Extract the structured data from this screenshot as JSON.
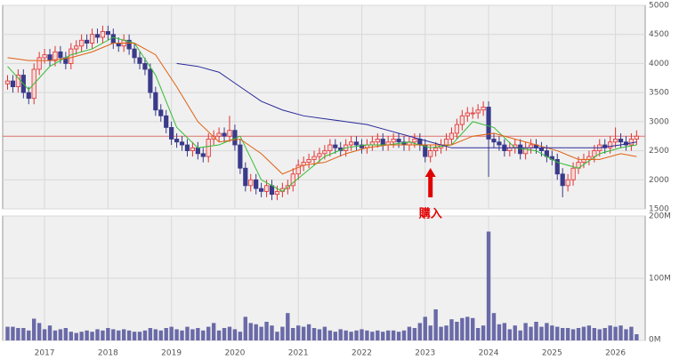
{
  "chart_data": {
    "type": "candlestick",
    "x": [
      "2016-06",
      "2016-07",
      "2016-08",
      "2016-09",
      "2016-10",
      "2016-11",
      "2016-12",
      "2017-01",
      "2017-02",
      "2017-03",
      "2017-04",
      "2017-05",
      "2017-06",
      "2017-07",
      "2017-08",
      "2017-09",
      "2017-10",
      "2017-11",
      "2017-12",
      "2018-01",
      "2018-02",
      "2018-03",
      "2018-04",
      "2018-05",
      "2018-06",
      "2018-07",
      "2018-08",
      "2018-09",
      "2018-10",
      "2018-11",
      "2018-12",
      "2019-01",
      "2019-02",
      "2019-03",
      "2019-04",
      "2019-05",
      "2019-06",
      "2019-07",
      "2019-08",
      "2019-09",
      "2019-10",
      "2019-11",
      "2019-12",
      "2020-01",
      "2020-02",
      "2020-03",
      "2020-04",
      "2020-05",
      "2020-06",
      "2020-07",
      "2020-08",
      "2020-09",
      "2020-10",
      "2020-11",
      "2020-12",
      "2021-01",
      "2021-02",
      "2021-03",
      "2021-04",
      "2021-05",
      "2021-06",
      "2021-07",
      "2021-08",
      "2021-09",
      "2021-10",
      "2021-11",
      "2021-12",
      "2022-01",
      "2022-02",
      "2022-03",
      "2022-04",
      "2022-05",
      "2022-06",
      "2022-07",
      "2022-08",
      "2022-09",
      "2022-10",
      "2022-11",
      "2022-12",
      "2023-01",
      "2023-02",
      "2023-03",
      "2023-04",
      "2023-05",
      "2023-06",
      "2023-07",
      "2023-08",
      "2023-09",
      "2023-10",
      "2023-11",
      "2023-12",
      "2024-01",
      "2024-02",
      "2024-03",
      "2024-04",
      "2024-05",
      "2024-06",
      "2024-07",
      "2024-08",
      "2024-09",
      "2024-10",
      "2024-11",
      "2024-12",
      "2025-01",
      "2025-02",
      "2025-03",
      "2025-04",
      "2025-05",
      "2025-06",
      "2025-07",
      "2025-08",
      "2025-09",
      "2025-10",
      "2025-11",
      "2025-12",
      "2026-01",
      "2026-02",
      "2026-03",
      "2026-04",
      "2026-05"
    ],
    "open": [
      3650,
      3700,
      3600,
      3800,
      3500,
      3400,
      3900,
      4100,
      4150,
      4050,
      4200,
      4100,
      4000,
      4250,
      4300,
      4400,
      4350,
      4500,
      4450,
      4550,
      4500,
      4350,
      4300,
      4400,
      4250,
      4100,
      4000,
      3900,
      3500,
      3200,
      3100,
      2900,
      2700,
      2650,
      2600,
      2500,
      2550,
      2450,
      2400,
      2700,
      2750,
      2800,
      2750,
      2850,
      2600,
      2200,
      1900,
      2000,
      1850,
      1800,
      1900,
      1750,
      1800,
      1850,
      1900,
      2100,
      2250,
      2300,
      2350,
      2400,
      2450,
      2500,
      2600,
      2550,
      2500,
      2600,
      2650,
      2600,
      2550,
      2600,
      2650,
      2700,
      2600,
      2650,
      2700,
      2650,
      2600,
      2650,
      2700,
      2600,
      2400,
      2500,
      2550,
      2600,
      2700,
      2800,
      2950,
      3100,
      3150,
      3150,
      3200,
      3250,
      2700,
      2650,
      2600,
      2500,
      2550,
      2600,
      2450,
      2550,
      2600,
      2550,
      2500,
      2400,
      2350,
      2100,
      1900,
      2000,
      2200,
      2300,
      2350,
      2400,
      2500,
      2600,
      2550,
      2650,
      2700,
      2650,
      2600,
      2700
    ],
    "high": [
      3800,
      3800,
      3900,
      3900,
      3600,
      4000,
      4200,
      4250,
      4250,
      4300,
      4300,
      4200,
      4350,
      4400,
      4500,
      4500,
      4600,
      4600,
      4650,
      4650,
      4600,
      4450,
      4500,
      4500,
      4350,
      4200,
      4100,
      4000,
      3600,
      3300,
      3200,
      3000,
      2800,
      2750,
      2700,
      2650,
      2650,
      2550,
      2800,
      2850,
      2900,
      2900,
      3100,
      2950,
      2700,
      2300,
      2100,
      2100,
      1950,
      2000,
      2000,
      1900,
      1950,
      2000,
      2200,
      2350,
      2400,
      2450,
      2500,
      2550,
      2600,
      2700,
      2700,
      2650,
      2700,
      2750,
      2750,
      2700,
      2700,
      2750,
      2800,
      2800,
      2750,
      2800,
      2800,
      2750,
      2750,
      2800,
      2800,
      2700,
      2600,
      2650,
      2700,
      2800,
      2900,
      3050,
      3200,
      3250,
      3250,
      3300,
      3350,
      3350,
      2800,
      2750,
      2700,
      2650,
      2700,
      2700,
      2650,
      2700,
      2700,
      2650,
      2600,
      2500,
      2450,
      2200,
      2100,
      2300,
      2400,
      2450,
      2500,
      2600,
      2700,
      2700,
      2750,
      2900,
      2800,
      2750,
      2800,
      2850
    ],
    "low": [
      3550,
      3500,
      3500,
      3400,
      3300,
      3300,
      3800,
      4000,
      3950,
      3950,
      4000,
      3900,
      3900,
      4150,
      4200,
      4250,
      4250,
      4350,
      4350,
      4400,
      4250,
      4200,
      4200,
      4150,
      4000,
      3900,
      3800,
      3400,
      3100,
      3000,
      2800,
      2600,
      2550,
      2500,
      2400,
      2400,
      2350,
      2300,
      2300,
      2600,
      2650,
      2650,
      2650,
      2500,
      2100,
      1800,
      1800,
      1750,
      1700,
      1700,
      1650,
      1650,
      1700,
      1750,
      1800,
      2000,
      2150,
      2200,
      2250,
      2300,
      2350,
      2400,
      2450,
      2400,
      2400,
      2500,
      2500,
      2450,
      2450,
      2500,
      2550,
      2500,
      2500,
      2550,
      2550,
      2500,
      2500,
      2550,
      2500,
      2300,
      2300,
      2400,
      2450,
      2500,
      2600,
      2700,
      2850,
      3000,
      3050,
      3050,
      3100,
      2050,
      2550,
      2500,
      2400,
      2400,
      2450,
      2350,
      2350,
      2450,
      2450,
      2400,
      2300,
      2250,
      2000,
      1700,
      1800,
      1900,
      2100,
      2200,
      2250,
      2300,
      2400,
      2450,
      2450,
      2550,
      2550,
      2500,
      2500,
      2600
    ],
    "close": [
      3700,
      3600,
      3800,
      3500,
      3400,
      3900,
      4100,
      4150,
      4050,
      4200,
      4100,
      4000,
      4250,
      4300,
      4400,
      4350,
      4500,
      4450,
      4550,
      4500,
      4350,
      4300,
      4400,
      4250,
      4100,
      4000,
      3900,
      3500,
      3200,
      3100,
      2900,
      2700,
      2650,
      2600,
      2500,
      2550,
      2450,
      2400,
      2700,
      2750,
      2800,
      2750,
      2850,
      2600,
      2200,
      1900,
      2000,
      1850,
      1800,
      1900,
      1750,
      1800,
      1850,
      1900,
      2100,
      2250,
      2300,
      2350,
      2400,
      2450,
      2500,
      2600,
      2550,
      2500,
      2600,
      2650,
      2600,
      2550,
      2600,
      2650,
      2700,
      2600,
      2650,
      2700,
      2650,
      2600,
      2650,
      2700,
      2600,
      2400,
      2500,
      2550,
      2600,
      2700,
      2800,
      2950,
      3100,
      3150,
      3150,
      3200,
      3250,
      2700,
      2650,
      2600,
      2500,
      2550,
      2600,
      2450,
      2550,
      2600,
      2550,
      2500,
      2400,
      2350,
      2100,
      1900,
      2000,
      2200,
      2300,
      2350,
      2400,
      2500,
      2600,
      2550,
      2650,
      2700,
      2650,
      2600,
      2700,
      2750
    ],
    "volume": [
      22,
      22,
      20,
      20,
      16,
      35,
      28,
      18,
      24,
      16,
      18,
      20,
      14,
      12,
      14,
      16,
      14,
      18,
      16,
      20,
      18,
      16,
      18,
      16,
      14,
      14,
      16,
      20,
      18,
      16,
      20,
      22,
      18,
      16,
      22,
      18,
      20,
      16,
      22,
      28,
      16,
      20,
      22,
      18,
      14,
      38,
      28,
      26,
      22,
      30,
      24,
      14,
      22,
      44,
      20,
      24,
      22,
      26,
      20,
      18,
      22,
      16,
      14,
      18,
      16,
      14,
      16,
      18,
      16,
      14,
      16,
      14,
      16,
      16,
      14,
      16,
      22,
      20,
      28,
      38,
      24,
      50,
      22,
      24,
      34,
      30,
      36,
      38,
      36,
      20,
      24,
      175,
      44,
      26,
      28,
      18,
      24,
      16,
      28,
      22,
      30,
      22,
      28,
      24,
      22,
      20,
      20,
      18,
      20,
      22,
      24,
      20,
      18,
      20,
      24,
      22,
      24,
      18,
      22,
      10
    ],
    "up_color": "#e03030",
    "down_color": "#3a3a8a",
    "volume_color": "#6a6aa8",
    "moving_averages": {
      "x": [
        "2016-06",
        "2016-10",
        "2017-02",
        "2017-06",
        "2017-10",
        "2018-02",
        "2018-06",
        "2018-10",
        "2019-02",
        "2019-06",
        "2019-10",
        "2020-02",
        "2020-06",
        "2020-10",
        "2021-02",
        "2021-06",
        "2021-10",
        "2022-02",
        "2022-06",
        "2022-10",
        "2023-02",
        "2023-06",
        "2023-10",
        "2024-02",
        "2024-06",
        "2024-10",
        "2025-02",
        "2025-06",
        "2025-10",
        "2026-02",
        "2026-05"
      ],
      "series": [
        {
          "color": "#33bb33",
          "values": [
            3950,
            3550,
            3950,
            4150,
            4250,
            4450,
            4350,
            3800,
            2900,
            2550,
            2600,
            2750,
            2000,
            1800,
            2100,
            2400,
            2550,
            2600,
            2600,
            2650,
            2550,
            2600,
            3000,
            2900,
            2550,
            2500,
            2300,
            2200,
            2450,
            2550,
            2600
          ]
        },
        {
          "color": "#e06010",
          "values": [
            4100,
            4050,
            4050,
            4100,
            4200,
            4350,
            4350,
            4150,
            3600,
            3000,
            2650,
            2700,
            2450,
            2100,
            2250,
            2300,
            2450,
            2550,
            2600,
            2600,
            2600,
            2600,
            2750,
            2800,
            2700,
            2600,
            2500,
            2350,
            2350,
            2450,
            2400
          ]
        },
        {
          "color": "#2a2a9a",
          "values": [
            null,
            null,
            null,
            null,
            null,
            null,
            null,
            null,
            4000,
            3950,
            3850,
            3600,
            3350,
            3200,
            3100,
            3050,
            3000,
            2950,
            2850,
            2750,
            2650,
            2550,
            2550,
            2550,
            2550,
            2550,
            2550,
            2550,
            2550,
            2600,
            2650
          ]
        }
      ]
    },
    "hline": 2750,
    "hline_color": "#e07070",
    "annotation": {
      "text": "購入",
      "x": "2023-02"
    },
    "ylim": [
      1500,
      5000
    ],
    "yticks": [
      1500,
      2000,
      2500,
      3000,
      3500,
      4000,
      4500,
      5000
    ],
    "vlim": [
      0,
      200
    ],
    "vticks": [
      {
        "value": 0,
        "label": "0M"
      },
      {
        "value": 100,
        "label": "100M"
      },
      {
        "value": 200,
        "label": "200M"
      }
    ],
    "xticks": [
      {
        "value": "2017-01",
        "label": "2017"
      },
      {
        "value": "2018-01",
        "label": "2018"
      },
      {
        "value": "2019-01",
        "label": "2019"
      },
      {
        "value": "2020-01",
        "label": "2020"
      },
      {
        "value": "2021-01",
        "label": "2021"
      },
      {
        "value": "2022-01",
        "label": "2022"
      },
      {
        "value": "2023-01",
        "label": "2023"
      },
      {
        "value": "2024-01",
        "label": "2024"
      },
      {
        "value": "2025-01",
        "label": "2025"
      },
      {
        "value": "2026-01",
        "label": "2026"
      }
    ],
    "grid": true
  }
}
